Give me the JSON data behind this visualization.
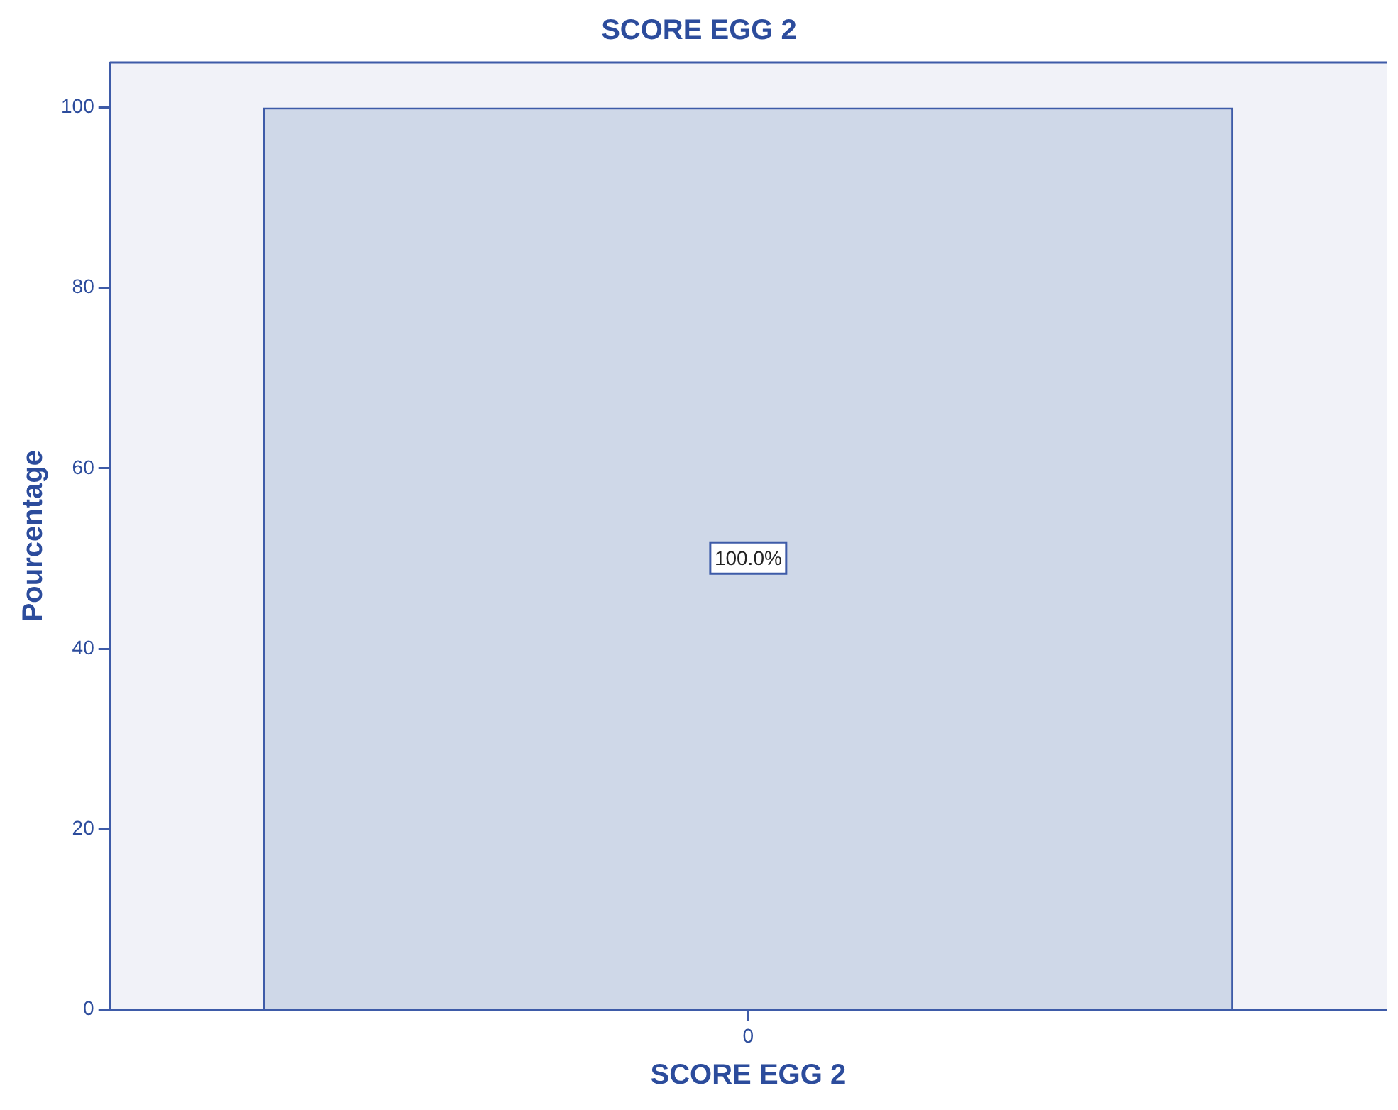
{
  "chart_data": {
    "type": "bar",
    "title": "SCORE EGG 2",
    "xlabel": "SCORE EGG 2",
    "ylabel": "Pourcentage",
    "categories": [
      "0"
    ],
    "series": [
      {
        "color": "#cfd8e8",
        "values": [
          100
        ],
        "value_labels": [
          "100.0%"
        ]
      }
    ],
    "ylim": [
      0,
      105
    ],
    "yticks": [
      0,
      20,
      40,
      60,
      80,
      100
    ],
    "grid": false,
    "legend": false
  }
}
